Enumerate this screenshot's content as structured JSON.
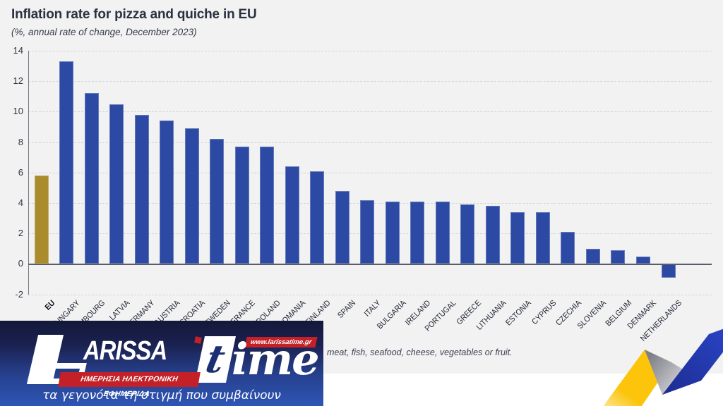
{
  "chart_data": {
    "type": "bar",
    "title": "Inflation rate for pizza and quiche in EU",
    "subtitle": "(%, annual rate of change, December 2023)",
    "categories": [
      "EU",
      "HUNGARY",
      "LUXEMBOURG",
      "LATVIA",
      "GERMANY",
      "AUSTRIA",
      "CROATIA",
      "SWEDEN",
      "FRANCE",
      "POLAND",
      "ROMANIA",
      "FINLAND",
      "SPAIN",
      "ITALY",
      "BULGARIA",
      "IRELAND",
      "PORTUGAL",
      "GREECE",
      "LITHUANIA",
      "ESTONIA",
      "CYPRUS",
      "CZECHIA",
      "SLOVENIA",
      "BELGIUM",
      "DENMARK",
      "NETHERLANDS"
    ],
    "values": [
      5.8,
      13.3,
      11.2,
      10.5,
      9.8,
      9.4,
      8.9,
      8.2,
      7.7,
      7.7,
      6.4,
      6.1,
      4.8,
      4.2,
      4.1,
      4.1,
      4.1,
      3.9,
      3.8,
      3.4,
      3.4,
      2.1,
      1.0,
      0.9,
      0.5,
      -0.9
    ],
    "highlight_category": "EU",
    "bar_color": "#2c49a3",
    "highlight_color": "#aa8c2c",
    "ylim": [
      -2,
      14
    ],
    "ytick_step": 2,
    "xlabel": "",
    "ylabel": "",
    "grid": "horizontal-dashed",
    "legend": "none"
  },
  "footnote_visible": "meat, fish, seafood, cheese, vegetables or fruit.",
  "watermark": {
    "brand": "LARISSAtime",
    "brand_initial": "L",
    "brand_rest": "ARISSA",
    "suffix_t": "t",
    "suffix_ime": "ime",
    "url": "www.larissatime.gr",
    "daily_line": "ΗΜΕΡΗΣΙΑ ΗΛΕΚΤΡΟΝΙΚΗ ΕΦΗΜΕΡΙΔΑ",
    "tagline": "τα γεγονότα τη στιγμή που συμβαίνουν"
  },
  "colors": {
    "background": "#f2f2f3",
    "page_bottom": "#ffffff",
    "bar_blue": "#2c49a3",
    "bar_gold": "#aa8c2c",
    "grid": "#d5d5d9",
    "axis": "#5b5e68",
    "text": "#2b3140",
    "logo_red": "#c32127",
    "logo_navy": "#14183a",
    "logo_blue": "#2e55b5",
    "ribbon_yellow": "#fcc40a",
    "ribbon_gray_dark": "#7e7f88",
    "ribbon_gray_light": "#e6e6e9",
    "ribbon_blue": "#2d47cd",
    "ribbon_blue_dark": "#1c2d92"
  }
}
